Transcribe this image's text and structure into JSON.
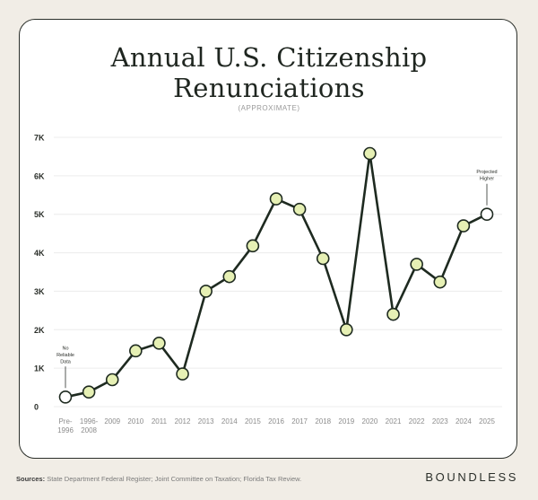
{
  "title_line1": "Annual U.S. Citizenship",
  "title_line2": "Renunciations",
  "subtitle": "(APPROXIMATE)",
  "sources_label": "Sources:",
  "sources_text": " State Department Federal Register; Joint Committee on Taxation; Florida Tax Review.",
  "brand": "BOUNDLESS",
  "colors": {
    "point_fill": "#e6f0b4",
    "line": "#1e2a20",
    "grid": "#ececec",
    "open_point_fill": "#ffffff"
  },
  "chart_data": {
    "type": "line",
    "title": "Annual U.S. Citizenship Renunciations",
    "subtitle": "(APPROXIMATE)",
    "xlabel": "",
    "ylabel": "",
    "ylim": [
      0,
      7000
    ],
    "yticks": [
      0,
      1000,
      2000,
      3000,
      4000,
      5000,
      6000,
      7000
    ],
    "ytick_labels": [
      "0",
      "1K",
      "2K",
      "3K",
      "4K",
      "5K",
      "6K",
      "7K"
    ],
    "grid": true,
    "categories": [
      [
        "Pre-",
        "1996"
      ],
      [
        "1996-",
        "2008"
      ],
      [
        "2009"
      ],
      [
        "2010"
      ],
      [
        "2011"
      ],
      [
        "2012"
      ],
      [
        "2013"
      ],
      [
        "2014"
      ],
      [
        "2015"
      ],
      [
        "2016"
      ],
      [
        "2017"
      ],
      [
        "2018"
      ],
      [
        "2019"
      ],
      [
        "2020"
      ],
      [
        "2021"
      ],
      [
        "2022"
      ],
      [
        "2023"
      ],
      [
        "2024"
      ],
      [
        "2025"
      ]
    ],
    "values": [
      250,
      380,
      700,
      1450,
      1650,
      850,
      3000,
      3380,
      4180,
      5400,
      5130,
      3850,
      2000,
      6580,
      2400,
      3700,
      3240,
      4700,
      5000
    ],
    "open_points": [
      0,
      18
    ],
    "annotations": [
      {
        "index": 0,
        "lines": [
          "No",
          "Reliable",
          "Data"
        ]
      },
      {
        "index": 18,
        "lines": [
          "Projected",
          "Higher"
        ]
      }
    ]
  }
}
